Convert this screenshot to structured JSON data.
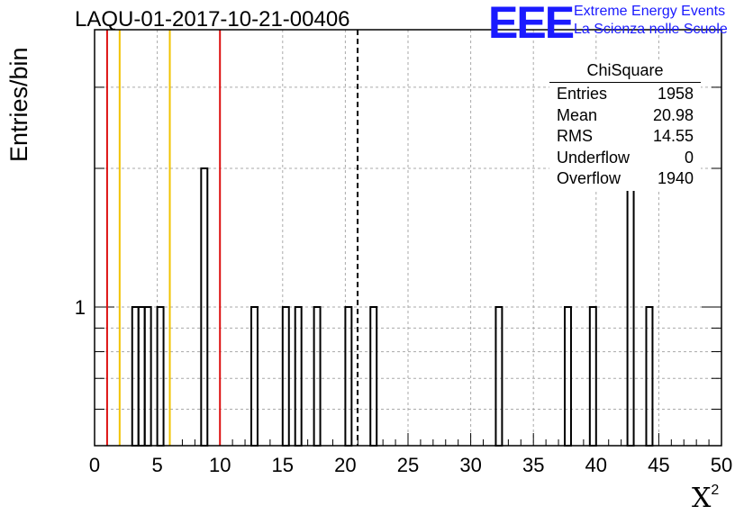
{
  "title": "LAQU-01-2017-10-21-00406",
  "logo": {
    "mark": "EEE",
    "line1": "Extreme Energy Events",
    "line2": "La Scienza nelle Scuole",
    "color": "#1a1aff"
  },
  "stats_box": {
    "title": "ChiSquare",
    "rows": [
      {
        "label": "Entries",
        "value": "1958"
      },
      {
        "label": "Mean",
        "value": "20.98"
      },
      {
        "label": "RMS",
        "value": "14.55"
      },
      {
        "label": "Underflow",
        "value": "0"
      },
      {
        "label": "Overflow",
        "value": "1940"
      }
    ]
  },
  "chart_data": {
    "type": "bar",
    "title": "LAQU-01-2017-10-21-00406",
    "xlabel": "X",
    "xlabel_sup": "2",
    "ylabel": "Entries/bin",
    "xlim": [
      0,
      50
    ],
    "ylim_log": [
      0.5,
      4
    ],
    "yscale": "log",
    "grid": true,
    "x_ticks": [
      "0",
      "5",
      "10",
      "15",
      "20",
      "25",
      "30",
      "35",
      "40",
      "45",
      "50"
    ],
    "y_tick_labels": [
      {
        "value": 1,
        "label": "1"
      }
    ],
    "bin_width": 0.5,
    "bins": [
      {
        "x": 3.0,
        "count": 1
      },
      {
        "x": 3.5,
        "count": 1
      },
      {
        "x": 4.0,
        "count": 1
      },
      {
        "x": 5.0,
        "count": 1
      },
      {
        "x": 8.5,
        "count": 2
      },
      {
        "x": 12.5,
        "count": 1
      },
      {
        "x": 15.0,
        "count": 1
      },
      {
        "x": 16.0,
        "count": 1
      },
      {
        "x": 17.5,
        "count": 1
      },
      {
        "x": 20.0,
        "count": 1
      },
      {
        "x": 22.0,
        "count": 1
      },
      {
        "x": 32.0,
        "count": 1
      },
      {
        "x": 37.5,
        "count": 1
      },
      {
        "x": 39.5,
        "count": 1
      },
      {
        "x": 42.5,
        "count": 2
      },
      {
        "x": 44.0,
        "count": 1
      }
    ],
    "vlines": [
      {
        "x": 1,
        "color": "#dd1111",
        "style": "solid"
      },
      {
        "x": 2,
        "color": "#f2c200",
        "style": "solid"
      },
      {
        "x": 6,
        "color": "#f2c200",
        "style": "solid"
      },
      {
        "x": 10,
        "color": "#dd1111",
        "style": "solid"
      },
      {
        "x": 20.98,
        "color": "#000000",
        "style": "dashed"
      }
    ]
  }
}
